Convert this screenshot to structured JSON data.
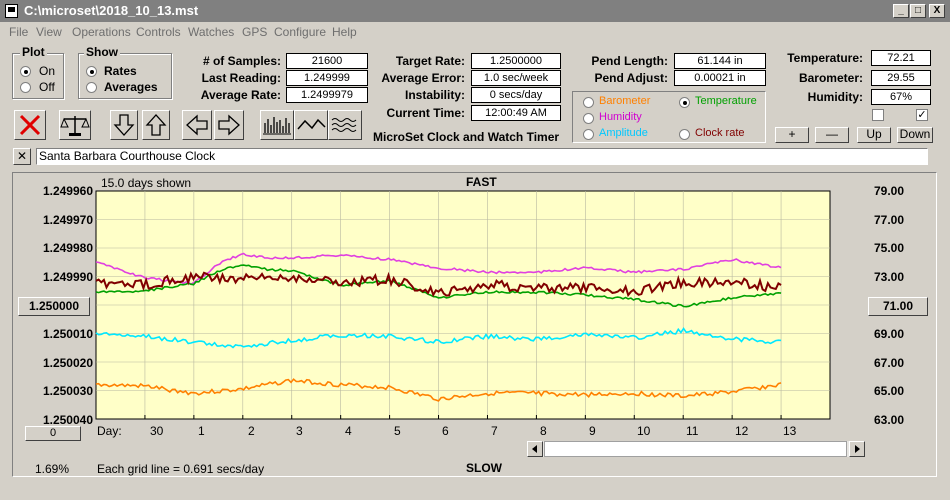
{
  "window": {
    "title": "C:\\microset\\2018_10_13.mst",
    "buttons": [
      "_",
      "□",
      "X"
    ]
  },
  "menu": [
    "File",
    "View",
    "Operations",
    "Controls",
    "Watches",
    "GPS",
    "Configure",
    "Help"
  ],
  "plot_group": {
    "title": "Plot",
    "options": [
      "On",
      "Off"
    ],
    "selected": "On"
  },
  "show_group": {
    "title": "Show",
    "options": [
      "Rates",
      "Averages"
    ],
    "selected": "Rates"
  },
  "stats": {
    "samples_label": "# of Samples:",
    "samples": "21600",
    "last_reading_label": "Last Reading:",
    "last_reading": "1.249999",
    "average_rate_label": "Average Rate:",
    "average_rate": "1.2499979",
    "target_rate_label": "Target Rate:",
    "target_rate": "1.2500000",
    "average_error_label": "Average Error:",
    "average_error": "1.0 sec/week",
    "instability_label": "Instability:",
    "instability": "0 secs/day",
    "current_time_label": "Current Time:",
    "current_time": "12:00:49 AM",
    "pend_length_label": "Pend Length:",
    "pend_length": "61.144 in",
    "pend_adjust_label": "Pend Adjust:",
    "pend_adjust": "0.00021 in",
    "temperature_label": "Temperature:",
    "temperature": "72.21",
    "barometer_label": "Barometer:",
    "barometer": "29.55",
    "humidity_label": "Humidity:",
    "humidity": "67%"
  },
  "app_label": "MicroSet Clock and Watch Timer",
  "sensor_options": [
    {
      "label": "Barometer",
      "color": "#ff8000",
      "selected": false
    },
    {
      "label": "Temperature",
      "color": "#00a000",
      "selected": true
    },
    {
      "label": "Humidity",
      "color": "#d000d0",
      "selected": false
    },
    {
      "label": "Amplitude",
      "color": "#00c8ff",
      "selected": false
    },
    {
      "label": "Clock rate",
      "color": "#800000",
      "selected": false
    }
  ],
  "adjust_buttons": [
    "+",
    "—",
    "Up",
    "Down"
  ],
  "checkboxes": [
    false,
    true
  ],
  "clock_name": "Santa Barbara Courthouse Clock",
  "close_glyph": "✕",
  "graph": {
    "days_shown": "15.0 days shown",
    "fast_label": "FAST",
    "slow_label": "SLOW",
    "grid_note": "Each grid line = 0.691 secs/day",
    "percent": "1.69%",
    "left_axis": [
      "1.249960",
      "1.249970",
      "1.249980",
      "1.249990",
      "1.250000",
      "1.250010",
      "1.250020",
      "1.250030",
      "1.250040"
    ],
    "right_axis": [
      "79.00",
      "77.00",
      "75.00",
      "73.00",
      "71.00",
      "69.00",
      "67.00",
      "65.00",
      "63.00"
    ],
    "left_selected": "1.250000",
    "right_selected": "71.00",
    "left_bottom": "0",
    "day_label": "Day:",
    "days": [
      "30",
      "1",
      "2",
      "3",
      "4",
      "5",
      "6",
      "7",
      "8",
      "9",
      "10",
      "11",
      "12",
      "13"
    ],
    "background": "#ffffc8"
  },
  "chart_data": {
    "type": "line",
    "x_unit": "days shown (0 to 15)",
    "xlim": [
      0,
      15
    ],
    "ylim_left": [
      1.24996,
      1.25004
    ],
    "ylim_right": [
      63,
      79
    ],
    "grid": true,
    "series": [
      {
        "name": "Humidity",
        "color": "#e040e0",
        "x": [
          0,
          1,
          2,
          2.5,
          3,
          3.5,
          4,
          5,
          6,
          7,
          8,
          9,
          10,
          11,
          12,
          13,
          14
        ],
        "values": [
          74.0,
          72.9,
          72.5,
          73.9,
          74.6,
          74.3,
          74.3,
          74.5,
          74.2,
          73.6,
          73.3,
          73.3,
          73.6,
          73.3,
          73.5,
          74.2,
          73.6
        ]
      },
      {
        "name": "Temperature",
        "color": "#00a000",
        "x": [
          0,
          1,
          2,
          2.5,
          3,
          3.5,
          4,
          5,
          6,
          7,
          8,
          9,
          10,
          11,
          12,
          13,
          14
        ],
        "values": [
          71.9,
          72.0,
          72.5,
          73.4,
          73.8,
          73.5,
          73.4,
          72.4,
          72.7,
          71.5,
          71.9,
          71.9,
          71.7,
          71.4,
          70.9,
          71.5,
          71.8
        ]
      },
      {
        "name": "Clock rate",
        "color": "#800000",
        "x": [
          0,
          1,
          2,
          3,
          4,
          5,
          6,
          7,
          8,
          9,
          10,
          11,
          12,
          13,
          14
        ],
        "values": [
          1.249992,
          1.249993,
          1.24999,
          1.249991,
          1.24999,
          1.249992,
          1.249991,
          1.249996,
          1.249993,
          1.249994,
          1.249994,
          1.249995,
          1.249992,
          1.249992,
          1.249994
        ]
      },
      {
        "name": "Amplitude",
        "color": "#00e8ff",
        "x": [
          0,
          1,
          2,
          3,
          4,
          5,
          6,
          7,
          8,
          9,
          10,
          11,
          12,
          13,
          14
        ],
        "values": [
          69.0,
          68.8,
          68.4,
          68.1,
          68.5,
          68.9,
          68.8,
          68.4,
          68.8,
          68.6,
          68.9,
          68.7,
          69.2,
          68.6,
          68.4
        ]
      },
      {
        "name": "Barometer",
        "color": "#ff8000",
        "x": [
          0,
          1,
          2,
          3,
          4,
          5,
          6,
          7,
          8,
          9,
          10,
          11,
          12,
          13,
          14
        ],
        "values": [
          65.4,
          65.3,
          64.8,
          65.1,
          65.7,
          65.4,
          65.2,
          64.4,
          64.8,
          64.8,
          64.7,
          64.8,
          64.6,
          64.9,
          65.4
        ]
      }
    ]
  }
}
